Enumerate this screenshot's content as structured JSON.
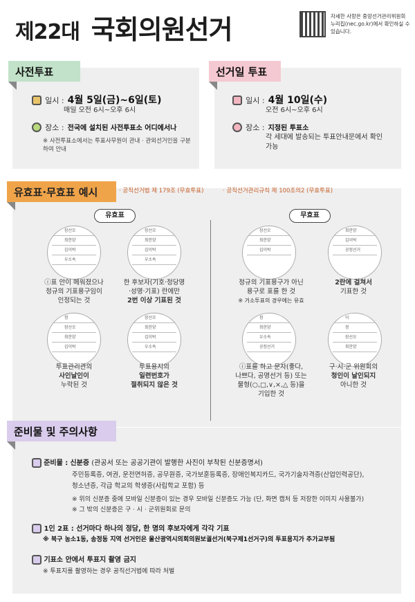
{
  "header": {
    "title_prefix": "제22대",
    "title_main": "국회의원선거",
    "qr_note": "자세한 사항은 중앙선거관리위원회 누리집(nec.go.kr)에서 확인하실 수 있습니다."
  },
  "early_voting": {
    "tab": "사전투표",
    "date_label": "일시 :",
    "date_value": "4월 5일(금)~6일(토)",
    "time_value": "매일 오전 6시~오후 6시",
    "place_label": "장소 :",
    "place_value": "전국에 설치된 사전투표소 어디에서나",
    "note": "※ 사전투표소에서는 투표사무원이 관내 · 관외선거인을 구분하여 안내"
  },
  "election_day": {
    "tab": "선거일 투표",
    "date_label": "일시 :",
    "date_value": "4월 10일(수)",
    "time_value": "오전 6시~오후 6시",
    "place_label": "장소 :",
    "place_value": "지정된 투표소",
    "place_detail": "각 세대에 발송되는 투표안내문에서 확인 가능"
  },
  "validity": {
    "tab": "유효표·무효표 예시",
    "ref1": "· 공직선거법 제 179조 (무효투표)",
    "ref2": "· 공직선거관리규칙 제 100조의2 (무효투표)",
    "valid_label": "유효표",
    "invalid_label": "무효표",
    "ballot_names": [
      "정",
      "장선오",
      "최한양",
      "김이박",
      "우소속",
      "공정선거",
      "이"
    ],
    "valid_items": [
      {
        "line1": "ⓘ표 안이 메워졌으나",
        "line2": "정규의 기표용구임이",
        "line3": "인정되는 것"
      },
      {
        "line1": "한 후보자(기호·정당명",
        "line2": "·성명·기표) 란에만",
        "line3": "2번 이상 기표된 것"
      },
      {
        "line1": "투표관리관의",
        "line2": "사인날인이",
        "line3": "누락된 것"
      },
      {
        "line1": "투표용지의",
        "line2": "일련번호가",
        "line3": "절취되지 않은 것"
      }
    ],
    "invalid_items": [
      {
        "line1": "정규의 기표용구가 아닌",
        "line2": "용구로 표를 한 것",
        "line3": "※ 거소투표의 경우에는 유효"
      },
      {
        "line1": "2란에 걸쳐서",
        "line2": "기표한 것",
        "line3": ""
      },
      {
        "line1": "ⓘ표를 하고 문자(좋다,",
        "line2": "나쁘다, 공명선거 등) 또는",
        "line3": "물형(○,□,∨,×,△ 등)을",
        "line4": "기입한 것"
      },
      {
        "line1": "구·시·군 위원회의",
        "line2": "청인이 날인되지",
        "line3": "아니한 것"
      }
    ]
  },
  "prep": {
    "tab": "준비물 및 주의사항",
    "items_label": "준비물 :",
    "id_title": "신분증",
    "id_desc": "(관공서 또는 공공기관이 발행한 사진이 부착된 신분증명서)",
    "id_list1": "주민등록증, 여권, 운전면허증, 공무원증, 국가보훈등록증, 장애인복지카드, 국가기술자격증(산업인력공단),",
    "id_list2": "청소년증, 각급 학교의 학생증(사립학교 포함) 등",
    "id_note1": "※ 위의 신분증 중에 모바일 신분증이 있는 경우 모바일 신분증도 가능 (단, 화면 캡처 등 저장한 이미지 사용불가)",
    "id_note2": "※ 그 밖의 신분증은 구 · 시 · 군위원회로 문의",
    "two_votes_title": "1인 2표 : 선거마다 하나의 정당, 한 명의 후보자에게 각각 기표",
    "two_votes_note": "※ 북구 농소1동, 송정동 지역 선거인은 울산광역시의회의원보궐선거(북구제1선거구)의 투표용지가 추가교부됨",
    "photo_title": "기표소 안에서 투표지 촬영 금지",
    "photo_note": "※ 투표지를 촬영하는 경우 공직선거법에 따라 처벌"
  },
  "colors": {
    "green": "#c2e2c9",
    "pink": "#f5c9d2",
    "purple": "#d9ccec",
    "orange": "#f0a44a",
    "red": "#e14b3b"
  }
}
